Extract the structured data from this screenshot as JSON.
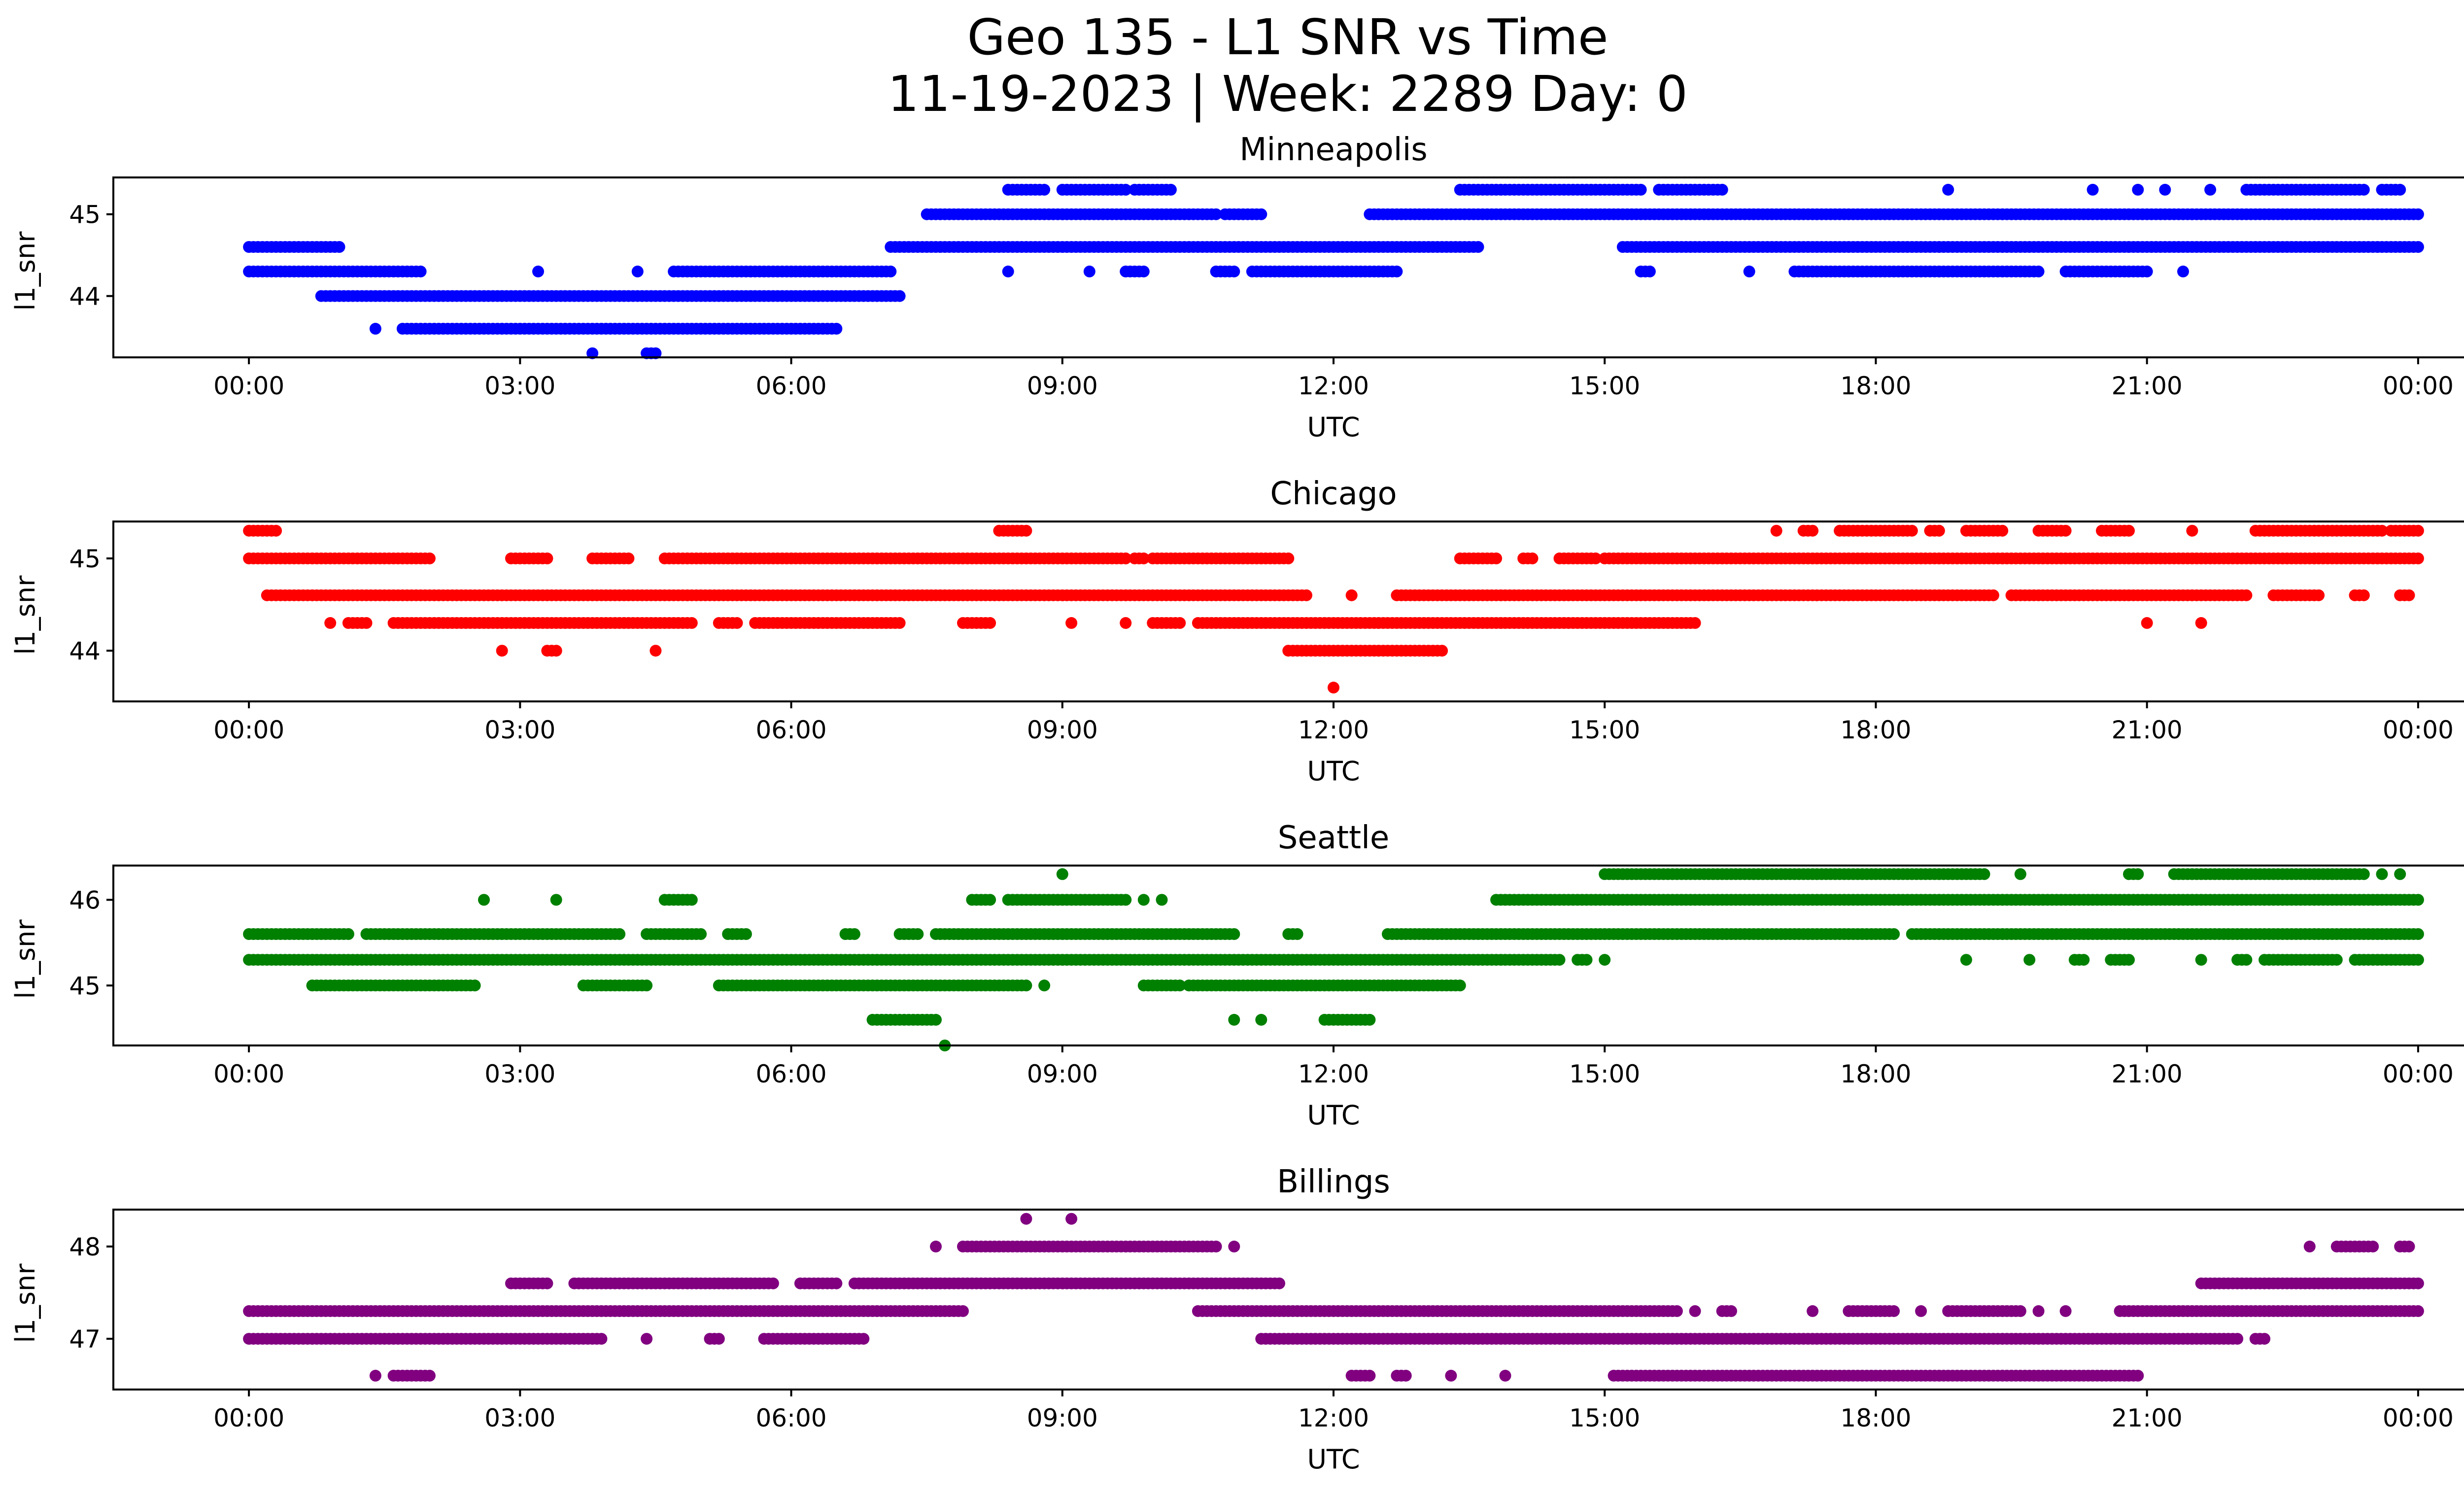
{
  "figure": {
    "title_line1": "Geo 135 - L1 SNR vs Time",
    "title_line2": "11-19-2023 | Week: 2289 Day: 0"
  },
  "chart_data": [
    {
      "type": "scatter",
      "title": "Minneapolis",
      "xlabel": "UTC",
      "ylabel": "l1_snr",
      "color": "#0000ff",
      "xlim": [
        -1.5,
        25.5
      ],
      "ylim": [
        43.25,
        45.45
      ],
      "xticks": [
        "00:00",
        "03:00",
        "06:00",
        "09:00",
        "12:00",
        "15:00",
        "18:00",
        "21:00",
        "00:00"
      ],
      "yticks": [
        44,
        45
      ],
      "bands": [
        {
          "y": 45.3,
          "segments": [
            [
              8.4,
              8.8
            ],
            [
              9.0,
              9.7
            ],
            [
              9.8,
              10.2
            ],
            [
              13.4,
              15.4
            ],
            [
              15.6,
              16.3
            ],
            [
              18.8,
              18.8
            ],
            [
              20.4,
              20.4
            ],
            [
              20.9,
              20.9
            ],
            [
              21.2,
              21.2
            ],
            [
              21.7,
              21.7
            ],
            [
              22.1,
              23.4
            ],
            [
              23.6,
              23.8
            ]
          ]
        },
        {
          "y": 45.0,
          "segments": [
            [
              7.5,
              10.7
            ],
            [
              10.8,
              11.2
            ],
            [
              12.4,
              24.0
            ]
          ]
        },
        {
          "y": 44.6,
          "segments": [
            [
              0.0,
              1.0
            ],
            [
              7.1,
              13.6
            ],
            [
              15.2,
              24.0
            ]
          ]
        },
        {
          "y": 44.3,
          "segments": [
            [
              0.0,
              1.9
            ],
            [
              3.2,
              3.2
            ],
            [
              4.3,
              4.3
            ],
            [
              4.7,
              7.1
            ],
            [
              8.4,
              8.4
            ],
            [
              9.3,
              9.3
            ],
            [
              9.7,
              9.9
            ],
            [
              10.7,
              10.9
            ],
            [
              11.1,
              12.7
            ],
            [
              15.4,
              15.5
            ],
            [
              16.6,
              16.6
            ],
            [
              17.1,
              19.8
            ],
            [
              20.1,
              21.0
            ],
            [
              21.4,
              21.4
            ]
          ]
        },
        {
          "y": 44.0,
          "segments": [
            [
              0.8,
              7.2
            ]
          ]
        },
        {
          "y": 43.6,
          "segments": [
            [
              1.4,
              1.4
            ],
            [
              1.7,
              6.5
            ]
          ]
        },
        {
          "y": 43.3,
          "segments": [
            [
              3.8,
              3.8
            ],
            [
              4.4,
              4.5
            ]
          ]
        }
      ]
    },
    {
      "type": "scatter",
      "title": "Chicago",
      "xlabel": "UTC",
      "ylabel": "l1_snr",
      "color": "#ff0000",
      "xlim": [
        -1.5,
        25.5
      ],
      "ylim": [
        43.45,
        45.4
      ],
      "xticks": [
        "00:00",
        "03:00",
        "06:00",
        "09:00",
        "12:00",
        "15:00",
        "18:00",
        "21:00",
        "00:00"
      ],
      "yticks": [
        44,
        45
      ],
      "bands": [
        {
          "y": 45.3,
          "segments": [
            [
              0.0,
              0.3
            ],
            [
              8.3,
              8.6
            ],
            [
              16.9,
              16.9
            ],
            [
              17.2,
              17.3
            ],
            [
              17.6,
              18.4
            ],
            [
              18.6,
              18.7
            ],
            [
              19.0,
              19.4
            ],
            [
              19.8,
              20.1
            ],
            [
              20.5,
              20.8
            ],
            [
              21.5,
              21.5
            ],
            [
              22.2,
              23.6
            ],
            [
              23.7,
              24.0
            ]
          ]
        },
        {
          "y": 45.0,
          "segments": [
            [
              0.0,
              2.0
            ],
            [
              2.9,
              3.3
            ],
            [
              3.8,
              4.2
            ],
            [
              4.6,
              9.7
            ],
            [
              9.8,
              9.9
            ],
            [
              10.0,
              11.5
            ],
            [
              13.4,
              13.8
            ],
            [
              14.1,
              14.2
            ],
            [
              14.5,
              14.9
            ],
            [
              15.0,
              24.0
            ]
          ]
        },
        {
          "y": 44.6,
          "segments": [
            [
              0.2,
              11.7
            ],
            [
              12.2,
              12.2
            ],
            [
              12.7,
              19.3
            ],
            [
              19.5,
              22.1
            ],
            [
              22.4,
              22.9
            ],
            [
              23.3,
              23.4
            ],
            [
              23.8,
              23.9
            ]
          ]
        },
        {
          "y": 44.3,
          "segments": [
            [
              0.9,
              0.9
            ],
            [
              1.1,
              1.3
            ],
            [
              1.6,
              4.9
            ],
            [
              5.2,
              5.4
            ],
            [
              5.6,
              7.2
            ],
            [
              7.9,
              8.2
            ],
            [
              9.1,
              9.1
            ],
            [
              9.7,
              9.7
            ],
            [
              10.0,
              10.3
            ],
            [
              10.5,
              16.0
            ],
            [
              21.0,
              21.0
            ],
            [
              21.6,
              21.6
            ]
          ]
        },
        {
          "y": 44.0,
          "segments": [
            [
              2.8,
              2.8
            ],
            [
              3.3,
              3.4
            ],
            [
              4.5,
              4.5
            ],
            [
              11.5,
              13.2
            ]
          ]
        },
        {
          "y": 43.6,
          "segments": [
            [
              12.0,
              12.0
            ]
          ]
        }
      ]
    },
    {
      "type": "scatter",
      "title": "Seattle",
      "xlabel": "UTC",
      "ylabel": "l1_snr",
      "color": "#008000",
      "xlim": [
        -1.5,
        25.5
      ],
      "ylim": [
        44.3,
        46.4
      ],
      "xticks": [
        "00:00",
        "03:00",
        "06:00",
        "09:00",
        "12:00",
        "15:00",
        "18:00",
        "21:00",
        "00:00"
      ],
      "yticks": [
        45,
        46
      ],
      "bands": [
        {
          "y": 46.3,
          "segments": [
            [
              9.0,
              9.0
            ],
            [
              15.0,
              19.2
            ],
            [
              19.6,
              19.6
            ],
            [
              20.8,
              20.9
            ],
            [
              21.3,
              23.4
            ],
            [
              23.6,
              23.6
            ],
            [
              23.8,
              23.8
            ]
          ]
        },
        {
          "y": 46.0,
          "segments": [
            [
              2.6,
              2.6
            ],
            [
              3.4,
              3.4
            ],
            [
              4.6,
              4.9
            ],
            [
              8.0,
              8.2
            ],
            [
              8.4,
              9.7
            ],
            [
              9.9,
              9.9
            ],
            [
              10.1,
              10.1
            ],
            [
              13.8,
              24.0
            ]
          ]
        },
        {
          "y": 45.6,
          "segments": [
            [
              0.0,
              1.1
            ],
            [
              1.3,
              4.1
            ],
            [
              4.4,
              5.0
            ],
            [
              5.3,
              5.5
            ],
            [
              6.6,
              6.7
            ],
            [
              7.2,
              7.4
            ],
            [
              7.6,
              10.9
            ],
            [
              11.5,
              11.6
            ],
            [
              12.6,
              18.2
            ],
            [
              18.4,
              24.0
            ]
          ]
        },
        {
          "y": 45.3,
          "segments": [
            [
              0.0,
              14.5
            ],
            [
              14.7,
              14.8
            ],
            [
              15.0,
              15.0
            ],
            [
              19.0,
              19.0
            ],
            [
              19.7,
              19.7
            ],
            [
              20.2,
              20.3
            ],
            [
              20.6,
              20.8
            ],
            [
              21.6,
              21.6
            ],
            [
              22.0,
              22.1
            ],
            [
              22.3,
              23.1
            ],
            [
              23.3,
              24.0
            ]
          ]
        },
        {
          "y": 45.0,
          "segments": [
            [
              0.7,
              2.5
            ],
            [
              3.7,
              4.4
            ],
            [
              5.2,
              8.6
            ],
            [
              8.8,
              8.8
            ],
            [
              9.9,
              10.3
            ],
            [
              10.4,
              13.4
            ]
          ]
        },
        {
          "y": 44.6,
          "segments": [
            [
              6.9,
              7.6
            ],
            [
              10.9,
              10.9
            ],
            [
              11.2,
              11.2
            ],
            [
              11.9,
              12.4
            ]
          ]
        },
        {
          "y": 44.3,
          "segments": [
            [
              7.7,
              7.7
            ]
          ]
        }
      ]
    },
    {
      "type": "scatter",
      "title": "Billings",
      "xlabel": "UTC",
      "ylabel": "l1_snr",
      "color": "#800080",
      "xlim": [
        -1.5,
        25.5
      ],
      "ylim": [
        46.45,
        48.4
      ],
      "xticks": [
        "00:00",
        "03:00",
        "06:00",
        "09:00",
        "12:00",
        "15:00",
        "18:00",
        "21:00",
        "00:00"
      ],
      "yticks": [
        47,
        48
      ],
      "bands": [
        {
          "y": 48.3,
          "segments": [
            [
              8.6,
              8.6
            ],
            [
              9.1,
              9.1
            ]
          ]
        },
        {
          "y": 48.0,
          "segments": [
            [
              7.6,
              7.6
            ],
            [
              7.9,
              10.7
            ],
            [
              10.9,
              10.9
            ],
            [
              22.8,
              22.8
            ],
            [
              23.1,
              23.5
            ],
            [
              23.8,
              23.9
            ]
          ]
        },
        {
          "y": 47.6,
          "segments": [
            [
              2.9,
              3.3
            ],
            [
              3.6,
              5.8
            ],
            [
              6.1,
              6.5
            ],
            [
              6.7,
              11.4
            ],
            [
              21.6,
              24.0
            ]
          ]
        },
        {
          "y": 47.3,
          "segments": [
            [
              0.0,
              7.9
            ],
            [
              10.5,
              15.8
            ],
            [
              16.0,
              16.0
            ],
            [
              16.3,
              16.4
            ],
            [
              17.3,
              17.3
            ],
            [
              17.7,
              18.2
            ],
            [
              18.5,
              18.5
            ],
            [
              18.8,
              19.6
            ],
            [
              19.8,
              19.8
            ],
            [
              20.1,
              20.1
            ],
            [
              20.7,
              24.0
            ]
          ]
        },
        {
          "y": 47.0,
          "segments": [
            [
              0.0,
              3.9
            ],
            [
              4.4,
              4.4
            ],
            [
              5.1,
              5.2
            ],
            [
              5.7,
              6.8
            ],
            [
              11.2,
              22.0
            ],
            [
              22.2,
              22.3
            ]
          ]
        },
        {
          "y": 46.6,
          "segments": [
            [
              1.4,
              1.4
            ],
            [
              1.6,
              2.0
            ],
            [
              12.2,
              12.4
            ],
            [
              12.7,
              12.8
            ],
            [
              13.3,
              13.3
            ],
            [
              13.9,
              13.9
            ],
            [
              15.1,
              20.9
            ]
          ]
        }
      ]
    }
  ]
}
